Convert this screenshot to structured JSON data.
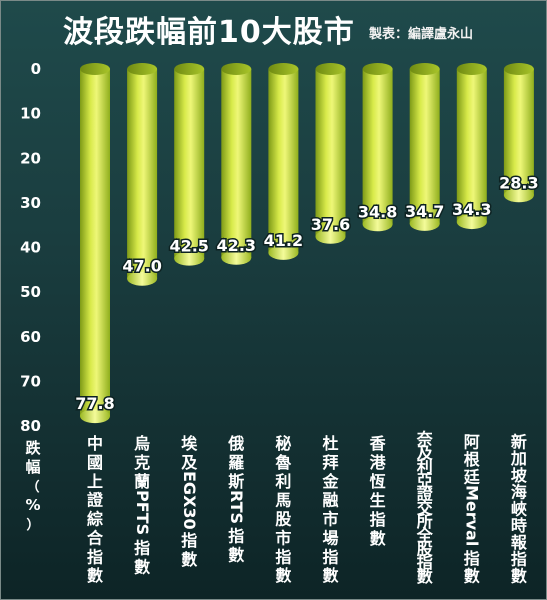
{
  "header": {
    "title": "波段跌幅前10大股市",
    "credit": "製表：編譯盧永山"
  },
  "colors": {
    "bar_light": "#e9f56a",
    "bar_mid": "#b7d12d",
    "bar_dark": "#7e9a17",
    "background": "#1a3d3f"
  },
  "chart_data": {
    "type": "bar",
    "orientation": "vertical-down",
    "ylabel": "跌幅（%）",
    "ylim": [
      0,
      80
    ],
    "yticks": [
      "0",
      "10",
      "20",
      "30",
      "40",
      "50",
      "60",
      "70",
      "80"
    ],
    "categories": [
      "中國上證綜合指數",
      "烏克蘭PFTS指數",
      "埃及EGX30指數",
      "俄羅斯RTS指數",
      "秘魯利馬股市指數",
      "杜拜金融市場指數",
      "香港恆生指數",
      "奈及利亞證交所全股指數",
      "阿根廷Merval指數",
      "新加坡海峽時報指數"
    ],
    "values": [
      77.8,
      47.0,
      42.5,
      42.3,
      41.2,
      37.6,
      34.8,
      34.7,
      34.3,
      28.3
    ],
    "value_labels": [
      "77.8",
      "47.0",
      "42.5",
      "42.3",
      "41.2",
      "37.6",
      "34.8",
      "34.7",
      "34.3",
      "28.3"
    ],
    "grid": false,
    "legend": "none"
  }
}
